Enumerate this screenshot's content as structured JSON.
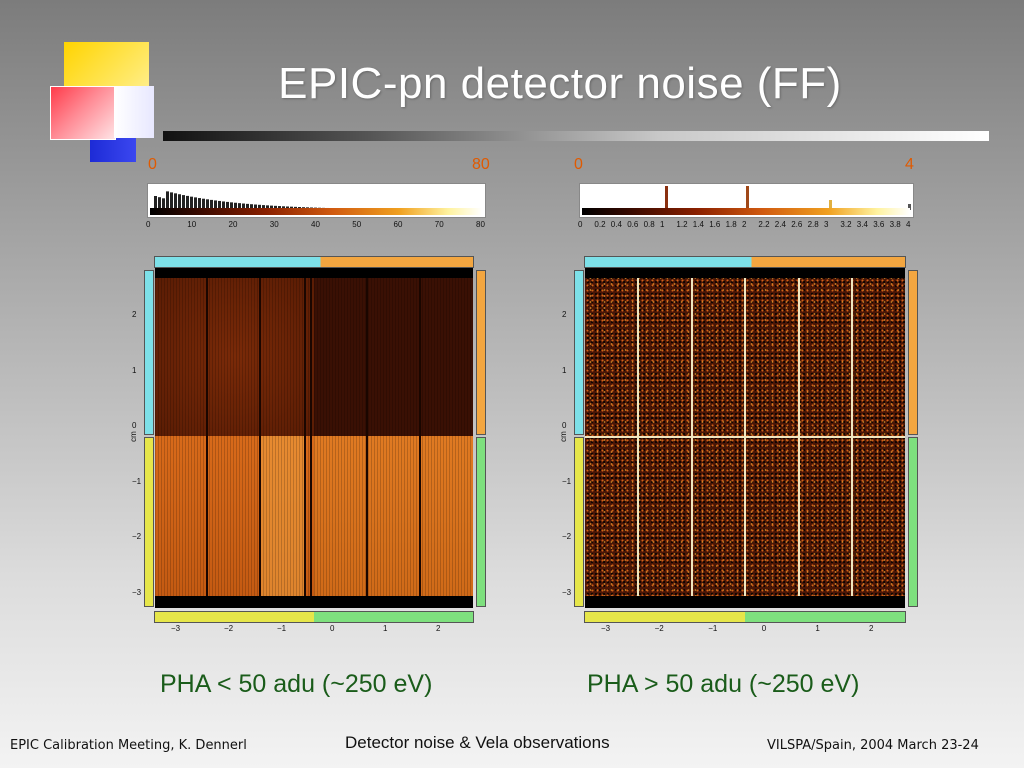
{
  "slide": {
    "title": "EPIC-pn detector noise  (FF)",
    "accent_colors": {
      "title_text": "#ffffff",
      "caption_text": "#1a5c1a",
      "scale_labels": "#e05a00"
    }
  },
  "left_panel": {
    "scale_min": "0",
    "scale_max": "80",
    "caption": "PHA < 50 adu (~250 eV)",
    "hist_ticks": [
      "0",
      "10",
      "20",
      "30",
      "40",
      "50",
      "60",
      "70",
      "80"
    ],
    "y_ticks": [
      "2",
      "1",
      "0",
      "−1",
      "−2",
      "−3"
    ],
    "x_ticks": [
      "−3",
      "−2",
      "−1",
      "0",
      "1",
      "2"
    ],
    "axis_unit": "cm"
  },
  "right_panel": {
    "scale_min": "0",
    "scale_max": "4",
    "caption": "PHA > 50 adu (~250 eV)",
    "hist_ticks": [
      "0",
      "0.2",
      "0.4",
      "0.6",
      "0.8",
      "1",
      "1.2",
      "1.4",
      "1.6",
      "1.8",
      "2",
      "2.2",
      "2.4",
      "2.6",
      "2.8",
      "3",
      "3.2",
      "3.4",
      "3.6",
      "3.8",
      "4"
    ],
    "y_ticks": [
      "2",
      "1",
      "0",
      "−1",
      "−2",
      "−3"
    ],
    "x_ticks": [
      "−3",
      "−2",
      "−1",
      "0",
      "1",
      "2"
    ],
    "axis_unit": "cm"
  },
  "footer": {
    "left": "EPIC Calibration Meeting, K. Dennerl",
    "center": "Detector noise & Vela observations",
    "right": "VILSPA/Spain, 2004 March 23-24"
  }
}
